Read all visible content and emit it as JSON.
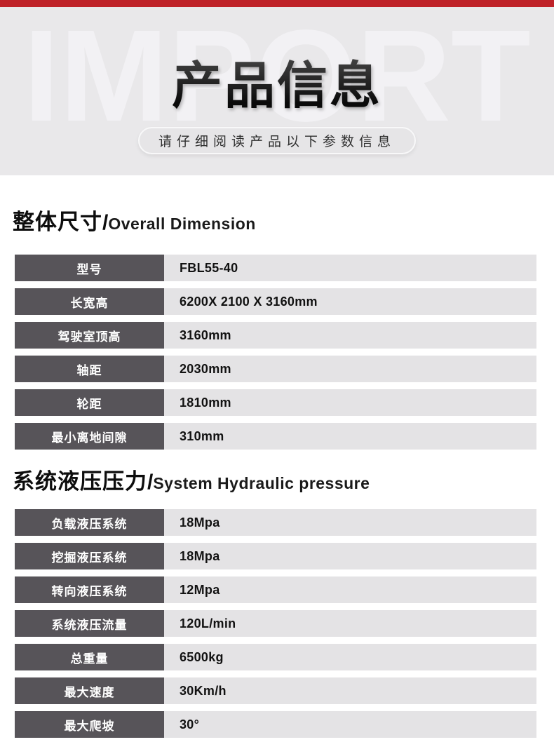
{
  "colors": {
    "accent-red": "#bf2228",
    "header-bg": "#e9e8ea",
    "watermark": "#f2f1f4",
    "title-dark": "#141414",
    "pill-bg": "#e6e5e7",
    "pill-border": "#f8f8f9",
    "pill-text": "#2e2e2e",
    "label-bg": "#575459",
    "label-text": "#ffffff",
    "value-bg": "#e4e3e5",
    "value-text": "#121212",
    "body-bg": "#ffffff"
  },
  "header": {
    "watermark": "IMPORT",
    "title": "产品信息",
    "subtitle": "请仔细阅读产品以下参数信息"
  },
  "sections": [
    {
      "title_cn": "整体尺寸",
      "divider": "/",
      "title_en": "Overall Dimension",
      "rows": [
        {
          "label": "型号",
          "value": "FBL55-40"
        },
        {
          "label": "长宽高",
          "value": "6200X 2100 X 3160mm"
        },
        {
          "label": "驾驶室顶高",
          "value": "3160mm"
        },
        {
          "label": "轴距",
          "value": "2030mm"
        },
        {
          "label": "轮距",
          "value": "1810mm"
        },
        {
          "label": "最小离地间隙",
          "value": "310mm"
        }
      ]
    },
    {
      "title_cn": "系统液压压力",
      "divider": "/",
      "title_en": "System Hydraulic pressure",
      "rows": [
        {
          "label": "负载液压系统",
          "value": "18Mpa"
        },
        {
          "label": "挖掘液压系统",
          "value": "18Mpa"
        },
        {
          "label": "转向液压系统",
          "value": "12Mpa"
        },
        {
          "label": "系统液压流量",
          "value": "120L/min"
        },
        {
          "label": "总重量",
          "value": "6500kg"
        },
        {
          "label": "最大速度",
          "value": "30Km/h"
        },
        {
          "label": "最大爬坡",
          "value": "30°"
        }
      ]
    }
  ]
}
